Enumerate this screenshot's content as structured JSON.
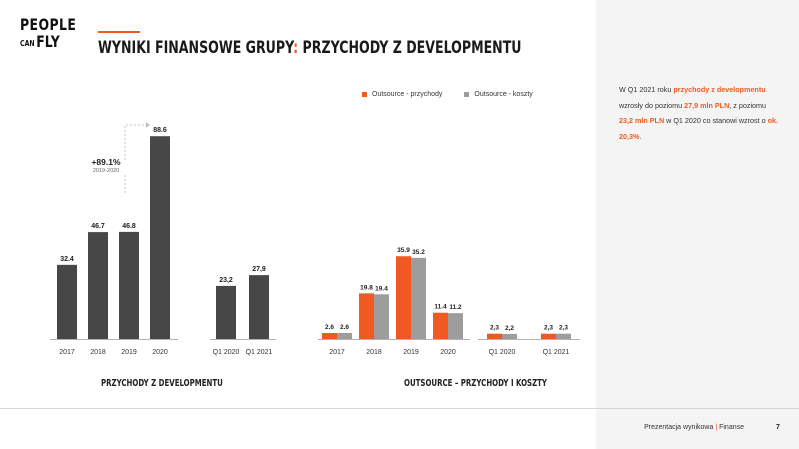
{
  "logo": {
    "line1": "PEOPLE",
    "can": "CAN",
    "fly": "FLY"
  },
  "header": {
    "title_part1": "WYNIKI FINANSOWE GRUPY",
    "title_colon": ":",
    "title_part2": " PRZYCHODY Z DEVELOPMENTU"
  },
  "legend": {
    "revenue": "Outsource - przychody",
    "costs": "Outsource - koszty"
  },
  "growth": {
    "pct": "+89.1%",
    "years": "2019-2020"
  },
  "colors": {
    "accent": "#f05a22",
    "dark": "#474747",
    "gray": "#9d9d9d"
  },
  "description": {
    "p1": "W Q1 2021 roku ",
    "h1": "przychody z developmentu",
    "p2": " wzrosły do poziomu ",
    "h2": "27,9 mln PLN",
    "p3": ", z poziomu ",
    "h3": "23,2 mln PLN",
    "p4": " w Q1 2020 co stanowi wzrost o ",
    "h4": "ok. 20,3%",
    "p5": "."
  },
  "footer": {
    "text": "Prezentacja wynikowa",
    "sep": "|",
    "section": "Finanse",
    "page": "7"
  },
  "chart_data": [
    {
      "type": "bar",
      "title": "PRZYCHODY Z DEVELOPMENTU",
      "categories": [
        "2017",
        "2018",
        "2019",
        "2020",
        "Q1 2020",
        "Q1 2021"
      ],
      "values": [
        32.4,
        46.7,
        46.8,
        88.6,
        23.2,
        27.9
      ],
      "labels": [
        "32.4",
        "46.7",
        "46.8",
        "88.6",
        "23,2",
        "27,9"
      ],
      "ylim": [
        0,
        90
      ]
    },
    {
      "type": "bar",
      "title": "OUTSOURCE – PRZYCHODY I KOSZTY",
      "categories": [
        "2017",
        "2018",
        "2019",
        "2020",
        "Q1 2020",
        "Q1 2021"
      ],
      "series": [
        {
          "name": "Outsource - przychody",
          "values": [
            2.6,
            19.8,
            35.9,
            11.4,
            2.3,
            2.3
          ],
          "labels": [
            "2.6",
            "19.8",
            "35.9",
            "11.4",
            "2,3",
            "2,3"
          ]
        },
        {
          "name": "Outsource - koszty",
          "values": [
            2.6,
            19.4,
            35.2,
            11.2,
            2.2,
            2.3
          ],
          "labels": [
            "2.6",
            "19.4",
            "35.2",
            "11.2",
            "2,2",
            "2,3"
          ]
        }
      ],
      "ylim": [
        0,
        36
      ]
    }
  ]
}
